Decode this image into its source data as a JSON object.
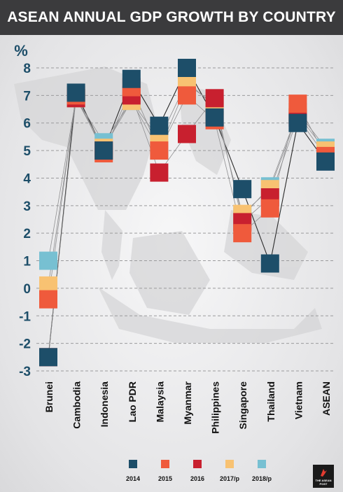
{
  "header": {
    "title": "ASEAN ANNUAL GDP GROWTH BY COUNTRY"
  },
  "logo": {
    "text": "THE ASEAN POST"
  },
  "chart_data": {
    "type": "scatter",
    "title": "ASEAN ANNUAL GDP GROWTH BY COUNTRY",
    "ylabel": "%",
    "ylim": [
      -3,
      8
    ],
    "yticks": [
      8,
      7,
      6,
      5,
      4,
      3,
      2,
      1,
      0,
      -1,
      -2,
      -3
    ],
    "grid": "horizontal dashed",
    "legend_position": "bottom",
    "categories": [
      "Brunei",
      "Cambodia",
      "Indonesia",
      "Lao PDR",
      "Malaysia",
      "Myanmar",
      "Philippines",
      "Singapore",
      "Thailand",
      "Vietnam",
      "ASEAN"
    ],
    "series": [
      {
        "name": "2014",
        "color": "#1d4e69",
        "values": [
          -2.5,
          7.1,
          5.0,
          7.6,
          5.9,
          8.0,
          6.2,
          3.6,
          0.9,
          6.0,
          4.6
        ]
      },
      {
        "name": "2015",
        "color": "#ef5a3c",
        "values": [
          -0.4,
          7.0,
          4.9,
          7.3,
          5.0,
          7.0,
          6.1,
          2.0,
          2.9,
          6.7,
          4.8
        ]
      },
      {
        "name": "2016",
        "color": "#c8202f",
        "values": [
          -2.5,
          6.9,
          5.0,
          7.0,
          4.2,
          5.6,
          6.9,
          2.4,
          3.3,
          6.2,
          4.8
        ]
      },
      {
        "name": "2017/p",
        "color": "#f8c272",
        "values": [
          0.1,
          6.9,
          5.1,
          6.8,
          5.4,
          7.5,
          6.6,
          2.7,
          3.6,
          6.3,
          5.0
        ]
      },
      {
        "name": "2018/p",
        "color": "#77c0d2",
        "values": [
          1.0,
          6.9,
          5.3,
          6.8,
          5.0,
          7.4,
          6.7,
          2.6,
          3.7,
          6.4,
          5.1
        ]
      }
    ]
  }
}
